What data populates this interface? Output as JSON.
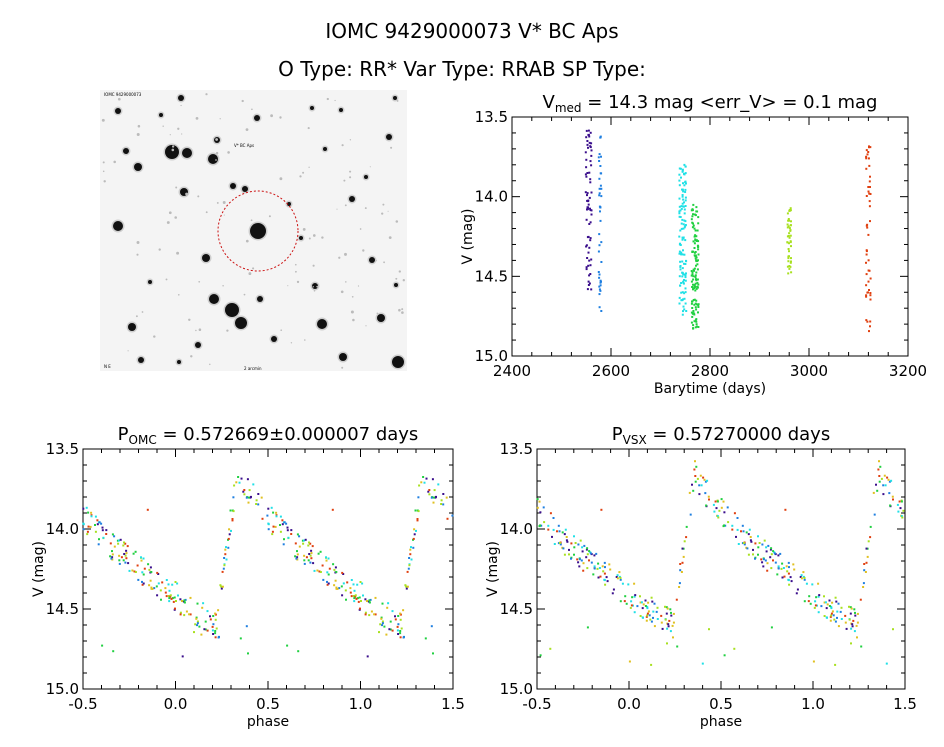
{
  "header": {
    "title_line1": "IOMC 9429000073    V* BC Aps",
    "title_line2": "O Type: RR*  Var Type: RRAB  SP Type:"
  },
  "image_panel": {
    "label_top_left": "IOMC 9429000073",
    "label_target": "V* BC Aps",
    "label_bottom_left": "N E",
    "label_bottom_center": "2 arcmin"
  },
  "chart_data": [
    {
      "type": "scatter",
      "id": "lightcurve",
      "title_parts": [
        "V",
        "med",
        " = 14.3 mag <err_V> = 0.1 mag"
      ],
      "xlabel": "Barytime (days)",
      "ylabel": "V (mag)",
      "xlim": [
        2400,
        3200
      ],
      "ylim": [
        15.0,
        13.5
      ],
      "xticks": [
        "2400",
        "2600",
        "2800",
        "3000",
        "3200"
      ],
      "yticks": [
        "13.5",
        "14.0",
        "14.5",
        "15.0"
      ],
      "clusters": [
        {
          "name": "cluster1",
          "color": "#3a0e8c",
          "x": 2555,
          "xspread": 12,
          "ymin": 13.58,
          "ymax": 14.62,
          "n": 70
        },
        {
          "name": "cluster2",
          "color": "#1f7fe0",
          "x": 2578,
          "xspread": 6,
          "ymin": 13.6,
          "ymax": 14.72,
          "n": 40
        },
        {
          "name": "cluster3",
          "color": "#20e0e6",
          "x": 2745,
          "xspread": 14,
          "ymin": 13.8,
          "ymax": 14.75,
          "n": 120
        },
        {
          "name": "cluster4",
          "color": "#20d040",
          "x": 2770,
          "xspread": 14,
          "ymin": 14.05,
          "ymax": 14.85,
          "n": 120
        },
        {
          "name": "cluster5",
          "color": "#a8e020",
          "x": 2960,
          "xspread": 8,
          "ymin": 14.05,
          "ymax": 14.5,
          "n": 45
        },
        {
          "name": "cluster6",
          "color": "#e04010",
          "x": 3120,
          "xspread": 10,
          "ymin": 13.68,
          "ymax": 14.88,
          "n": 50
        }
      ]
    },
    {
      "type": "scatter",
      "id": "phase_omc",
      "title_parts": [
        "P",
        "OMC",
        " = 0.572669±0.000007 days"
      ],
      "xlabel": "phase",
      "ylabel": "V (mag)",
      "xlim": [
        -0.5,
        1.5
      ],
      "ylim": [
        15.0,
        13.5
      ],
      "xticks": [
        "-0.5",
        "0.0",
        "0.5",
        "1.0",
        "1.5"
      ],
      "yticks": [
        "13.5",
        "14.0",
        "14.5",
        "15.0"
      ],
      "period": 0.572669,
      "shape": {
        "min_mag": 14.6,
        "max_mag": 13.62,
        "rise_start": 0.22,
        "rise_end": 0.34
      }
    },
    {
      "type": "scatter",
      "id": "phase_vsx",
      "title_parts": [
        "P",
        "VSX",
        " = 0.57270000 days"
      ],
      "xlabel": "phase",
      "ylabel": "V (mag)",
      "xlim": [
        -0.5,
        1.5
      ],
      "ylim": [
        15.0,
        13.5
      ],
      "xticks": [
        "-0.5",
        "0.0",
        "0.5",
        "1.0",
        "1.5"
      ],
      "yticks": [
        "13.5",
        "14.0",
        "14.5",
        "15.0"
      ],
      "period": 0.5727,
      "shape": {
        "min_mag": 14.6,
        "max_mag": 13.62,
        "rise_start": 0.24,
        "rise_end": 0.36
      }
    }
  ]
}
